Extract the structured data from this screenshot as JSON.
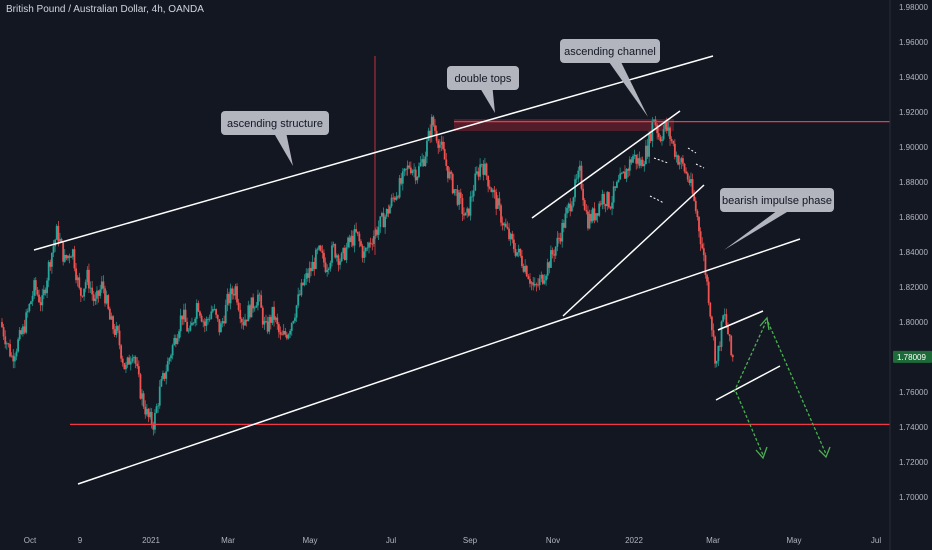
{
  "header": {
    "title": "British Pound / Australian Dollar, 4h, OANDA"
  },
  "colors": {
    "background": "#131722",
    "bull_candle": "#26a69a",
    "bear_candle": "#ef5350",
    "support_line": "#f23645",
    "trend_lines": "#ffffff",
    "projection_up": "#4caf50",
    "projection_down": "#4caf50",
    "callout_bg": "#b2b5be",
    "double_top_zone": "#5d1f2c",
    "price_badge": "#1e6b3a",
    "axis_text": "#b2b5be"
  },
  "chart_data": {
    "type": "candlestick",
    "symbol": "British Pound / Australian Dollar",
    "interval": "4h",
    "exchange": "OANDA",
    "current_price": "1.78009",
    "x_ticks": [
      "Oct",
      "9",
      "2021",
      "Mar",
      "May",
      "Jul",
      "Sep",
      "Nov",
      "2022",
      "Mar",
      "May",
      "Jul"
    ],
    "y_ticks": [
      "1.98000",
      "1.96000",
      "1.94000",
      "1.92000",
      "1.90000",
      "1.88000",
      "1.86000",
      "1.84000",
      "1.82000",
      "1.80000",
      "1.78000",
      "1.76000",
      "1.74000",
      "1.72000",
      "1.70000"
    ],
    "ylim": [
      1.7,
      1.98
    ],
    "horizontal_levels": [
      1.9145,
      1.7415
    ],
    "price_path": [
      [
        0,
        1.8
      ],
      [
        0.6,
        1.78
      ],
      [
        1.2,
        1.795
      ],
      [
        1.8,
        1.82
      ],
      [
        2.2,
        1.81
      ],
      [
        2.6,
        1.835
      ],
      [
        3.0,
        1.852
      ],
      [
        3.4,
        1.835
      ],
      [
        3.8,
        1.842
      ],
      [
        4.2,
        1.815
      ],
      [
        4.6,
        1.826
      ],
      [
        5.0,
        1.81
      ],
      [
        5.4,
        1.822
      ],
      [
        5.8,
        1.8
      ],
      [
        6.2,
        1.792
      ],
      [
        6.6,
        1.772
      ],
      [
        7.0,
        1.785
      ],
      [
        7.4,
        1.76
      ],
      [
        7.8,
        1.745
      ],
      [
        8.1,
        1.742
      ],
      [
        8.4,
        1.76
      ],
      [
        8.8,
        1.775
      ],
      [
        9.2,
        1.79
      ],
      [
        9.6,
        1.805
      ],
      [
        10.0,
        1.792
      ],
      [
        10.4,
        1.812
      ],
      [
        10.8,
        1.798
      ],
      [
        11.2,
        1.808
      ],
      [
        11.6,
        1.795
      ],
      [
        12.0,
        1.812
      ],
      [
        12.4,
        1.82
      ],
      [
        12.8,
        1.8
      ],
      [
        13.2,
        1.808
      ],
      [
        13.6,
        1.815
      ],
      [
        14.0,
        1.795
      ],
      [
        14.4,
        1.805
      ],
      [
        14.8,
        1.79
      ],
      [
        15.2,
        1.795
      ],
      [
        15.6,
        1.808
      ],
      [
        16.0,
        1.822
      ],
      [
        16.4,
        1.83
      ],
      [
        16.8,
        1.84
      ],
      [
        17.2,
        1.832
      ],
      [
        17.6,
        1.842
      ],
      [
        18.0,
        1.835
      ],
      [
        18.4,
        1.845
      ],
      [
        18.8,
        1.85
      ],
      [
        19.2,
        1.838
      ],
      [
        19.6,
        1.848
      ],
      [
        20.0,
        1.855
      ],
      [
        20.4,
        1.862
      ],
      [
        20.8,
        1.872
      ],
      [
        21.2,
        1.88
      ],
      [
        21.6,
        1.89
      ],
      [
        22.0,
        1.885
      ],
      [
        22.4,
        1.895
      ],
      [
        22.8,
        1.915
      ],
      [
        23.1,
        1.905
      ],
      [
        23.4,
        1.895
      ],
      [
        23.8,
        1.88
      ],
      [
        24.2,
        1.87
      ],
      [
        24.6,
        1.858
      ],
      [
        25.0,
        1.878
      ],
      [
        25.4,
        1.892
      ],
      [
        25.8,
        1.88
      ],
      [
        26.2,
        1.868
      ],
      [
        26.6,
        1.855
      ],
      [
        27.0,
        1.845
      ],
      [
        27.4,
        1.838
      ],
      [
        27.8,
        1.83
      ],
      [
        28.2,
        1.818
      ],
      [
        28.6,
        1.825
      ],
      [
        29.0,
        1.835
      ],
      [
        29.4,
        1.845
      ],
      [
        29.8,
        1.858
      ],
      [
        30.2,
        1.872
      ],
      [
        30.6,
        1.885
      ],
      [
        31.0,
        1.858
      ],
      [
        31.4,
        1.862
      ],
      [
        31.8,
        1.872
      ],
      [
        32.2,
        1.868
      ],
      [
        32.6,
        1.878
      ],
      [
        33.0,
        1.885
      ],
      [
        33.4,
        1.895
      ],
      [
        33.8,
        1.89
      ],
      [
        34.2,
        1.9
      ],
      [
        34.5,
        1.918
      ],
      [
        34.8,
        1.905
      ],
      [
        35.1,
        1.912
      ],
      [
        35.4,
        1.905
      ],
      [
        35.7,
        1.895
      ],
      [
        36.0,
        1.89
      ],
      [
        36.4,
        1.88
      ],
      [
        36.8,
        1.86
      ],
      [
        37.1,
        1.84
      ],
      [
        37.4,
        1.815
      ],
      [
        37.6,
        1.795
      ],
      [
        37.8,
        1.775
      ],
      [
        38.0,
        1.79
      ],
      [
        38.2,
        1.805
      ],
      [
        38.4,
        1.795
      ],
      [
        38.6,
        1.78
      ]
    ]
  },
  "annotations": {
    "ascending_structure": "ascending structure",
    "double_tops": "double tops",
    "ascending_channel": "ascending channel",
    "bearish_impulse_phase": "bearish impulse phase"
  }
}
